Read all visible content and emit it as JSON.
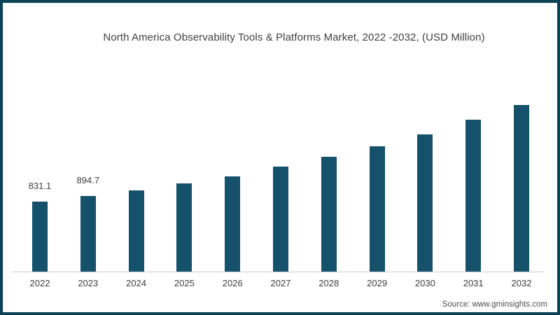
{
  "chart_data": {
    "type": "bar",
    "title": "North America Observability Tools & Platforms Market, 2022 -2032, (USD Million)",
    "categories": [
      "2022",
      "2023",
      "2024",
      "2025",
      "2026",
      "2027",
      "2028",
      "2029",
      "2030",
      "2031",
      "2032"
    ],
    "values": [
      831.1,
      894.7,
      963,
      1046,
      1129,
      1245,
      1361,
      1486,
      1627,
      1801,
      1975
    ],
    "data_labels": [
      "831.1",
      "894.7",
      "",
      "",
      "",
      "",
      "",
      "",
      "",
      "",
      ""
    ],
    "xlabel": "",
    "ylabel": "",
    "ylim": [
      0,
      2150
    ],
    "grid": false,
    "legend": false,
    "bar_color": "#15516b",
    "axis_line_color": "#cccccc",
    "text_color": "#3d3d3d",
    "frame_color": "#0d4156"
  },
  "source": {
    "text": "Source: www.gminsights.com"
  }
}
